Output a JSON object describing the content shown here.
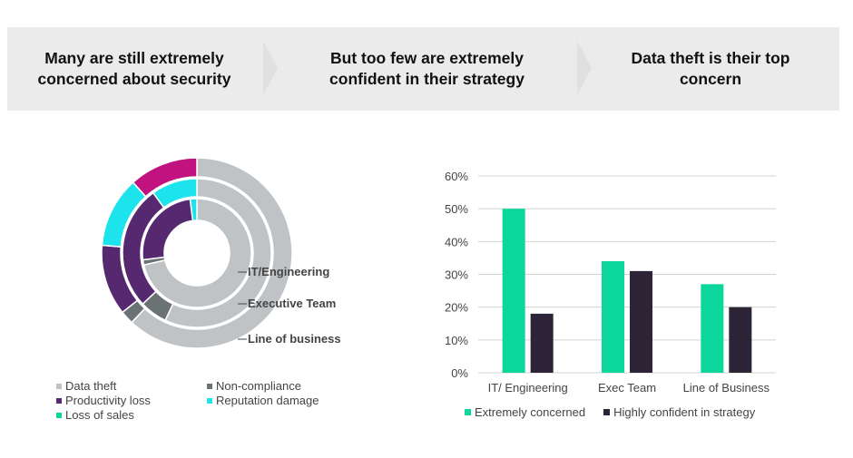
{
  "banner": {
    "steps": [
      {
        "line1": "Many are still extremely",
        "line2": "concerned about security"
      },
      {
        "line1": "But too few are extremely",
        "line2": "confident in their strategy"
      },
      {
        "line1": "Data theft is their top",
        "line2": "concern"
      }
    ]
  },
  "colors": {
    "data_theft": "#c0c3c6",
    "non_compliance": "#6b7275",
    "productivity_loss": "#55286f",
    "reputation_damage": "#1de4ec",
    "loss_of_sales": "#c1137f",
    "extremely_concerned": "#0bd69b",
    "highly_confident": "#2d2438"
  },
  "chart_data": [
    {
      "type": "pie",
      "subtype": "multi-ring donut",
      "title": "",
      "categories": [
        "Data theft",
        "Non-compliance",
        "Productivity loss",
        "Reputation damage",
        "Loss of sales"
      ],
      "rings": [
        {
          "name": "IT/Engineering",
          "position": "inner",
          "values": [
            71.5,
            1.5,
            25,
            2,
            0
          ]
        },
        {
          "name": "Executive Team",
          "position": "middle",
          "values": [
            57,
            6,
            27,
            10,
            0
          ]
        },
        {
          "name": "Line of business",
          "position": "outer",
          "values": [
            62,
            2.3,
            12,
            12,
            11.7
          ]
        }
      ],
      "legend": {
        "placement": "bottom",
        "entries": [
          "Data theft",
          "Non-compliance",
          "Productivity loss",
          "Reputation damage",
          "Loss of sales"
        ]
      }
    },
    {
      "type": "bar",
      "title": "",
      "categories": [
        "IT/ Engineering",
        "Exec Team",
        "Line of Business"
      ],
      "series": [
        {
          "name": "Extremely concerned",
          "values": [
            50,
            34,
            27
          ]
        },
        {
          "name": "Highly confident in strategy",
          "values": [
            18,
            31,
            20
          ]
        }
      ],
      "xlabel": "",
      "ylabel": "",
      "ylim": [
        0,
        60
      ],
      "yticks": [
        "0%",
        "10%",
        "20%",
        "30%",
        "40%",
        "50%",
        "60%"
      ],
      "grid": true,
      "legend": {
        "placement": "bottom"
      }
    }
  ]
}
